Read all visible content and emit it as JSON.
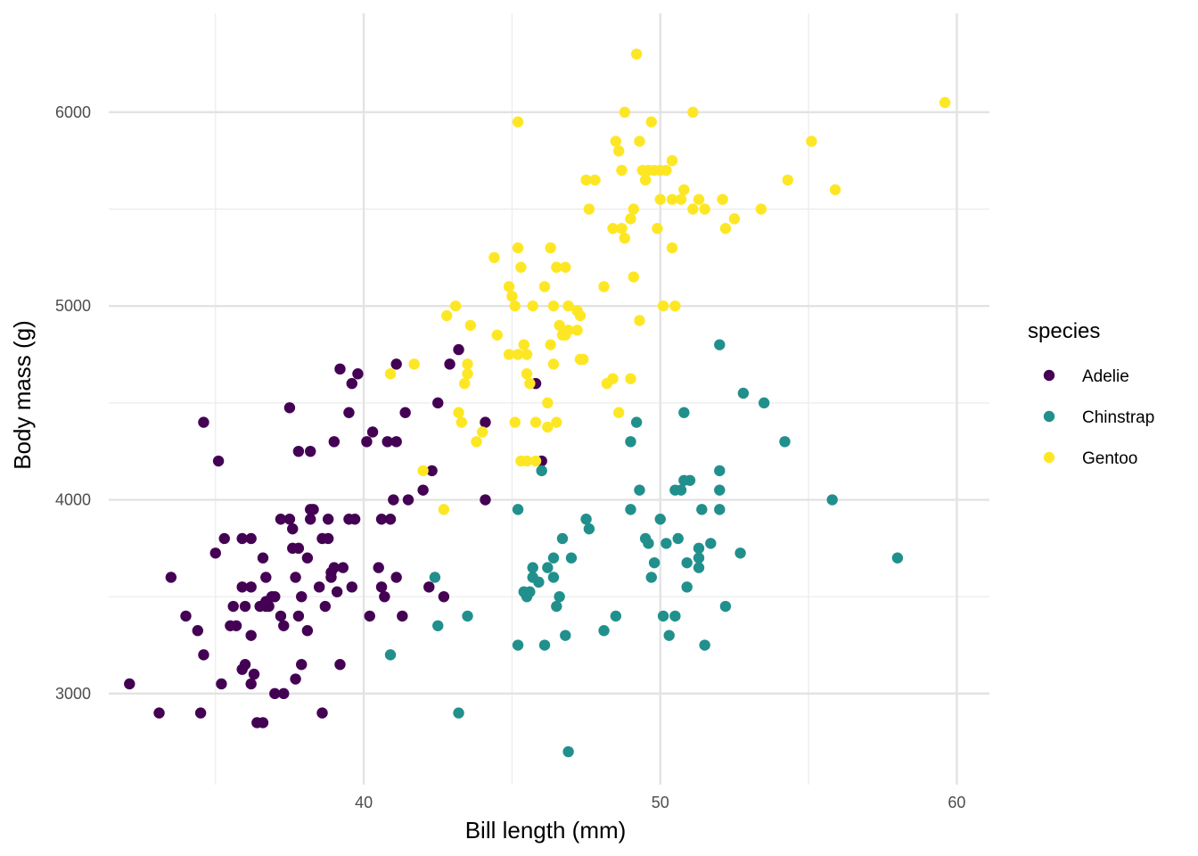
{
  "chart_data": {
    "type": "scatter",
    "xlabel": "Bill length (mm)",
    "ylabel": "Body mass (g)",
    "xlim": [
      31.4,
      61.1
    ],
    "ylim": [
      2530,
      6510
    ],
    "x_ticks": [
      40,
      50,
      60
    ],
    "x_minor_ticks": [
      35,
      45,
      55
    ],
    "y_ticks": [
      3000,
      4000,
      5000,
      6000
    ],
    "y_minor_ticks": [
      3500,
      4500,
      5500
    ],
    "grid": true,
    "legend": {
      "title": "species",
      "position": "right"
    },
    "series": [
      {
        "name": "Adelie",
        "color": "#440154",
        "points": [
          [
            32.1,
            3050
          ],
          [
            33.1,
            2900
          ],
          [
            33.5,
            3600
          ],
          [
            34.0,
            3400
          ],
          [
            34.4,
            3325
          ],
          [
            34.5,
            2900
          ],
          [
            34.6,
            3200
          ],
          [
            34.6,
            4400
          ],
          [
            35.1,
            4200
          ],
          [
            35.2,
            3050
          ],
          [
            35.3,
            3800
          ],
          [
            35.5,
            3350
          ],
          [
            35.6,
            3450
          ],
          [
            35.7,
            3350
          ],
          [
            35.9,
            3550
          ],
          [
            35.9,
            3800
          ],
          [
            35.9,
            3125
          ],
          [
            36.0,
            3150
          ],
          [
            36.0,
            3450
          ],
          [
            36.2,
            3550
          ],
          [
            36.2,
            3050
          ],
          [
            36.2,
            3300
          ],
          [
            36.3,
            3100
          ],
          [
            36.4,
            2850
          ],
          [
            36.5,
            3450
          ],
          [
            36.6,
            3700
          ],
          [
            36.6,
            2850
          ],
          [
            36.7,
            3450
          ],
          [
            36.7,
            3600
          ],
          [
            36.7,
            3475
          ],
          [
            36.8,
            3450
          ],
          [
            36.9,
            3500
          ],
          [
            37.0,
            3500
          ],
          [
            37.0,
            3000
          ],
          [
            37.2,
            3900
          ],
          [
            37.2,
            3400
          ],
          [
            37.3,
            3000
          ],
          [
            37.3,
            3350
          ],
          [
            37.5,
            3900
          ],
          [
            37.5,
            4475
          ],
          [
            37.6,
            3750
          ],
          [
            37.7,
            3600
          ],
          [
            37.7,
            3075
          ],
          [
            37.8,
            3750
          ],
          [
            37.8,
            3400
          ],
          [
            37.8,
            4250
          ],
          [
            37.9,
            3150
          ],
          [
            38.1,
            3700
          ],
          [
            38.1,
            3325
          ],
          [
            38.2,
            3950
          ],
          [
            38.2,
            3900
          ],
          [
            38.3,
            3950
          ],
          [
            38.5,
            3550
          ],
          [
            38.6,
            3800
          ],
          [
            38.6,
            2900
          ],
          [
            38.7,
            3450
          ],
          [
            38.8,
            3800
          ],
          [
            38.9,
            3600
          ],
          [
            38.9,
            3625
          ],
          [
            39.0,
            3650
          ],
          [
            39.1,
            3525
          ],
          [
            39.2,
            4675
          ],
          [
            39.3,
            3650
          ],
          [
            39.5,
            3900
          ],
          [
            39.6,
            3550
          ],
          [
            39.7,
            3900
          ],
          [
            39.8,
            4650
          ],
          [
            40.1,
            4300
          ],
          [
            40.2,
            3400
          ],
          [
            40.6,
            3900
          ],
          [
            40.6,
            3550
          ],
          [
            40.7,
            3500
          ],
          [
            40.8,
            4300
          ],
          [
            40.9,
            3900
          ],
          [
            41.0,
            4000
          ],
          [
            41.1,
            4300
          ],
          [
            41.1,
            4700
          ],
          [
            41.3,
            3400
          ],
          [
            41.4,
            4450
          ],
          [
            41.5,
            4000
          ],
          [
            42.0,
            4050
          ],
          [
            42.2,
            3550
          ],
          [
            42.3,
            4150
          ],
          [
            42.5,
            4500
          ],
          [
            42.7,
            3500
          ],
          [
            42.9,
            4700
          ],
          [
            43.2,
            4775
          ],
          [
            44.1,
            4000
          ],
          [
            44.1,
            4400
          ],
          [
            45.8,
            4600
          ],
          [
            46.0,
            4200
          ],
          [
            39.0,
            4300
          ],
          [
            39.5,
            4450
          ],
          [
            39.6,
            4600
          ],
          [
            38.2,
            4250
          ],
          [
            37.6,
            3850
          ],
          [
            40.3,
            4350
          ],
          [
            40.5,
            3650
          ],
          [
            41.1,
            3600
          ],
          [
            38.8,
            3900
          ],
          [
            35.0,
            3725
          ],
          [
            36.2,
            3800
          ],
          [
            39.2,
            3150
          ],
          [
            37.9,
            3500
          ]
        ]
      },
      {
        "name": "Chinstrap",
        "color": "#21908c",
        "points": [
          [
            40.9,
            3200
          ],
          [
            42.4,
            3600
          ],
          [
            42.5,
            3350
          ],
          [
            43.2,
            2900
          ],
          [
            43.5,
            3400
          ],
          [
            45.2,
            3250
          ],
          [
            45.2,
            3950
          ],
          [
            45.4,
            3525
          ],
          [
            45.5,
            3500
          ],
          [
            45.6,
            3525
          ],
          [
            45.7,
            3600
          ],
          [
            45.7,
            3650
          ],
          [
            45.9,
            3575
          ],
          [
            46.0,
            4150
          ],
          [
            46.1,
            3250
          ],
          [
            46.2,
            3650
          ],
          [
            46.4,
            3700
          ],
          [
            46.5,
            3450
          ],
          [
            46.6,
            3500
          ],
          [
            46.7,
            3800
          ],
          [
            46.8,
            3300
          ],
          [
            46.9,
            2700
          ],
          [
            47.0,
            3700
          ],
          [
            47.5,
            3900
          ],
          [
            47.6,
            3850
          ],
          [
            48.1,
            3325
          ],
          [
            48.5,
            3400
          ],
          [
            49.0,
            3950
          ],
          [
            49.0,
            4300
          ],
          [
            49.2,
            4400
          ],
          [
            49.3,
            4050
          ],
          [
            49.5,
            3800
          ],
          [
            49.6,
            3775
          ],
          [
            49.7,
            3600
          ],
          [
            49.8,
            3675
          ],
          [
            50.0,
            3900
          ],
          [
            50.1,
            3400
          ],
          [
            50.2,
            3775
          ],
          [
            50.3,
            3300
          ],
          [
            50.5,
            3400
          ],
          [
            50.5,
            4050
          ],
          [
            50.6,
            3800
          ],
          [
            50.7,
            4050
          ],
          [
            50.8,
            4100
          ],
          [
            50.8,
            4450
          ],
          [
            50.9,
            3675
          ],
          [
            50.9,
            3550
          ],
          [
            51.0,
            4100
          ],
          [
            51.3,
            3650
          ],
          [
            51.3,
            3700
          ],
          [
            51.3,
            3750
          ],
          [
            51.4,
            3950
          ],
          [
            51.5,
            3250
          ],
          [
            51.7,
            3775
          ],
          [
            52.0,
            3950
          ],
          [
            52.0,
            4150
          ],
          [
            52.0,
            4050
          ],
          [
            52.0,
            4800
          ],
          [
            52.2,
            3450
          ],
          [
            52.7,
            3725
          ],
          [
            52.8,
            4550
          ],
          [
            53.5,
            4500
          ],
          [
            54.2,
            4300
          ],
          [
            55.8,
            4000
          ],
          [
            58.0,
            3700
          ],
          [
            46.4,
            3600
          ]
        ]
      },
      {
        "name": "Gentoo",
        "color": "#fde725",
        "points": [
          [
            40.9,
            4650
          ],
          [
            41.7,
            4700
          ],
          [
            42.0,
            4150
          ],
          [
            42.7,
            3950
          ],
          [
            42.8,
            4950
          ],
          [
            43.1,
            5000
          ],
          [
            43.2,
            4450
          ],
          [
            43.3,
            4400
          ],
          [
            43.4,
            4600
          ],
          [
            43.5,
            4650
          ],
          [
            43.5,
            4700
          ],
          [
            43.6,
            4900
          ],
          [
            43.8,
            4300
          ],
          [
            44.0,
            4350
          ],
          [
            44.4,
            5250
          ],
          [
            44.5,
            4850
          ],
          [
            44.9,
            4750
          ],
          [
            44.9,
            5100
          ],
          [
            45.0,
            5050
          ],
          [
            45.1,
            5000
          ],
          [
            45.1,
            4400
          ],
          [
            45.2,
            4750
          ],
          [
            45.2,
            5950
          ],
          [
            45.2,
            5300
          ],
          [
            45.3,
            4200
          ],
          [
            45.3,
            5200
          ],
          [
            45.4,
            4800
          ],
          [
            45.5,
            4750
          ],
          [
            45.5,
            4650
          ],
          [
            45.5,
            4200
          ],
          [
            45.6,
            4600
          ],
          [
            45.7,
            5000
          ],
          [
            45.8,
            4200
          ],
          [
            45.8,
            4400
          ],
          [
            46.1,
            5100
          ],
          [
            46.2,
            4500
          ],
          [
            46.2,
            4375
          ],
          [
            46.3,
            4800
          ],
          [
            46.3,
            5300
          ],
          [
            46.4,
            4700
          ],
          [
            46.4,
            5000
          ],
          [
            46.5,
            4400
          ],
          [
            46.5,
            5200
          ],
          [
            46.6,
            4900
          ],
          [
            46.7,
            4850
          ],
          [
            46.8,
            5200
          ],
          [
            46.8,
            4850
          ],
          [
            46.9,
            4875
          ],
          [
            47.2,
            4875
          ],
          [
            47.3,
            4725
          ],
          [
            47.4,
            4725
          ],
          [
            47.5,
            5650
          ],
          [
            47.6,
            5500
          ],
          [
            47.8,
            5650
          ],
          [
            48.1,
            5100
          ],
          [
            48.2,
            4600
          ],
          [
            48.4,
            5400
          ],
          [
            48.4,
            4625
          ],
          [
            48.5,
            5850
          ],
          [
            48.6,
            5800
          ],
          [
            48.7,
            5400
          ],
          [
            48.7,
            5700
          ],
          [
            48.8,
            5350
          ],
          [
            49.0,
            5450
          ],
          [
            49.1,
            5500
          ],
          [
            49.1,
            5150
          ],
          [
            49.2,
            6300
          ],
          [
            49.3,
            5850
          ],
          [
            49.4,
            5700
          ],
          [
            49.5,
            5650
          ],
          [
            49.6,
            5700
          ],
          [
            49.7,
            5950
          ],
          [
            49.8,
            5700
          ],
          [
            49.9,
            5400
          ],
          [
            50.0,
            5700
          ],
          [
            50.0,
            5550
          ],
          [
            50.1,
            5000
          ],
          [
            50.2,
            5700
          ],
          [
            50.4,
            5550
          ],
          [
            50.4,
            5750
          ],
          [
            50.5,
            5000
          ],
          [
            50.7,
            5550
          ],
          [
            50.8,
            5600
          ],
          [
            51.1,
            5500
          ],
          [
            51.1,
            6000
          ],
          [
            51.3,
            5550
          ],
          [
            51.5,
            5500
          ],
          [
            52.1,
            5550
          ],
          [
            52.2,
            5400
          ],
          [
            52.5,
            5450
          ],
          [
            53.4,
            5500
          ],
          [
            54.3,
            5650
          ],
          [
            55.1,
            5850
          ],
          [
            55.9,
            5600
          ],
          [
            59.6,
            6050
          ],
          [
            47.2,
            4975
          ],
          [
            48.8,
            6000
          ],
          [
            50.4,
            5300
          ],
          [
            46.9,
            5000
          ],
          [
            47.3,
            4950
          ],
          [
            48.6,
            4450
          ],
          [
            49.0,
            4625
          ],
          [
            49.3,
            4925
          ]
        ]
      }
    ]
  }
}
